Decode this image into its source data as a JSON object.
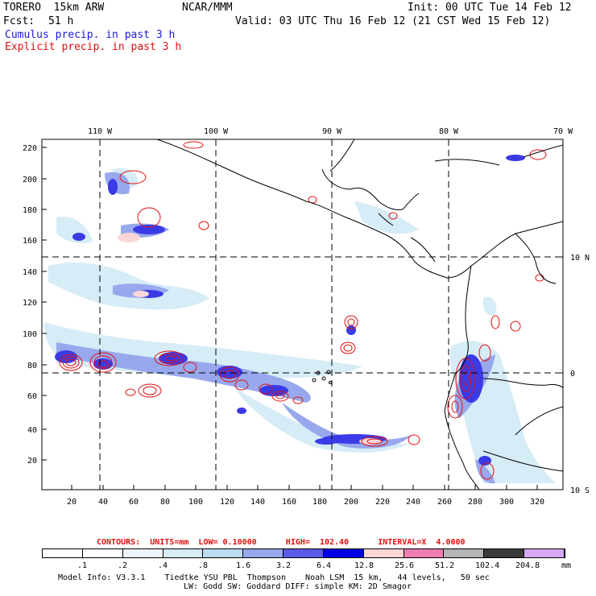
{
  "header": {
    "model": "TORERO  15km ARW",
    "org": "NCAR/MMM",
    "init": "Init: 00 UTC Tue 14 Feb 12",
    "fcst_label": "Fcst:",
    "fcst_value": "51 h",
    "valid": "Valid: 03 UTC Thu 16 Feb 12 (21 CST Wed 15 Feb 12)"
  },
  "fields": {
    "cumulus": "Cumulus precip. in past 3 h",
    "explicit": "Explicit precip. in past 3 h",
    "cumulus_color": "#1a1adb",
    "explicit_color": "#e01010"
  },
  "axes": {
    "top_lon": [
      "110 W",
      "100 W",
      "90 W",
      "80 W",
      "70 W"
    ],
    "right_lat": [
      "10 N",
      "0",
      "10 S"
    ],
    "left_ticks": [
      "220",
      "200",
      "180",
      "160",
      "140",
      "120",
      "100",
      "80",
      "60",
      "40",
      "20"
    ],
    "bottom_ticks": [
      "20",
      "40",
      "60",
      "80",
      "100",
      "120",
      "140",
      "160",
      "180",
      "200",
      "220",
      "240",
      "260",
      "280",
      "300",
      "320"
    ]
  },
  "contour_info": {
    "text": "CONTOURS:  UNITS=mm  LOW= 0.10000      HIGH=  102.40      INTERVAL=X  4.0000"
  },
  "colorbar": {
    "labels": [
      ".1",
      ".2",
      ".4",
      ".8",
      "1.6",
      "3.2",
      "6.4",
      "12.8",
      "25.6",
      "51.2",
      "102.4",
      "204.8"
    ],
    "unit": "mm",
    "colors": [
      "#ffffff",
      "#ffffff",
      "#eef6fb",
      "#d6ecf6",
      "#bcdcf2",
      "#98a8ec",
      "#5a5ae6",
      "#0000e6",
      "#fcd6d6",
      "#f07cb4",
      "#b4b4b4",
      "#3a3a3a",
      "#d8a8f4"
    ]
  },
  "footer": {
    "line1": "Model Info: V3.3.1    Tiedtke YSU PBL  Thompson    Noah LSM  15 km,   44 levels,   50 sec",
    "line2": "LW: Godd SW: Goddard DIFF: simple KM: 2D Smagor"
  }
}
